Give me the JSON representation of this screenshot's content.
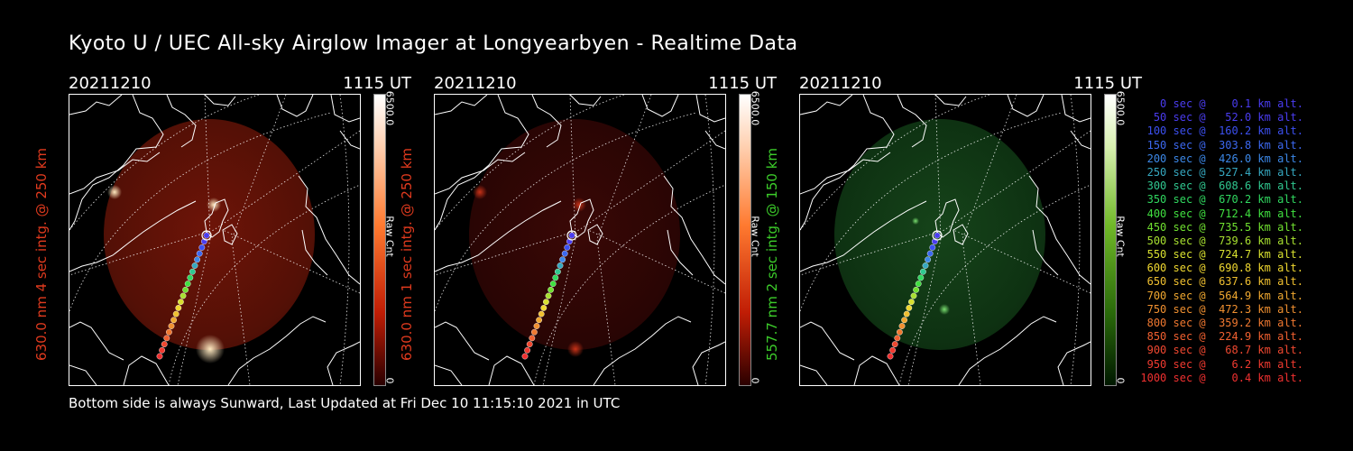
{
  "title": "Kyoto U / UEC All-sky Airglow Imager at Longyearbyen - Realtime Data",
  "footer": "Bottom side is always Sunward, Last Updated at Fri Dec 10 11:15:10 2021 in UTC",
  "panels": [
    {
      "date": "20211210",
      "time": "1115 UT",
      "side_label": "630.0 nm 4 sec intg. @ 250 km",
      "label_color": "#e03a1e",
      "cb_max": "6500.0",
      "cb_unit": "Raw Cnt",
      "cb_min": "0",
      "cb_gradient": "linear-gradient(to bottom, #ffffff 0%, #ffd0b0 18%, #ff7a30 45%, #c01d05 75%, #2a0000 100%)",
      "glow_center": "#6e1408",
      "glow_edge": "#541006",
      "hot": "#ffe9c0"
    },
    {
      "date": "20211210",
      "time": "1115 UT",
      "side_label": "630.0 nm 1 sec intg. @ 250 km",
      "label_color": "#e03a1e",
      "cb_max": "6500.0",
      "cb_unit": "Raw Cnt",
      "cb_min": "0",
      "cb_gradient": "linear-gradient(to bottom, #ffffff 0%, #ffd0b0 18%, #ff7a30 45%, #c01d05 75%, #2a0000 100%)",
      "glow_center": "#3a0806",
      "glow_edge": "#2a0504",
      "hot": "#c63218"
    },
    {
      "date": "20211210",
      "time": "1115 UT",
      "side_label": "557.7 nm 2 sec intg. @ 150 km",
      "label_color": "#3ccc2a",
      "cb_max": "6500.0",
      "cb_unit": "Raw Cnt",
      "cb_min": "0",
      "cb_gradient": "linear-gradient(to bottom, #ffffff 0%, #d8f0b0 18%, #70b828 45%, #2a6a0a 75%, #001800 100%)",
      "glow_center": "#16441a",
      "glow_edge": "#0e3212",
      "hot": "#7adf70"
    }
  ],
  "legend": [
    {
      "text": "   0 sec @    0.1 km alt.",
      "color": "#4a3cf0"
    },
    {
      "text": "  50 sec @   52.0 km alt.",
      "color": "#4a3cf0"
    },
    {
      "text": " 100 sec @  160.2 km alt.",
      "color": "#3c50f0"
    },
    {
      "text": " 150 sec @  303.8 km alt.",
      "color": "#3c68f0"
    },
    {
      "text": " 200 sec @  426.0 km alt.",
      "color": "#3c88e8"
    },
    {
      "text": " 250 sec @  527.4 km alt.",
      "color": "#36a8c0"
    },
    {
      "text": " 300 sec @  608.6 km alt.",
      "color": "#30c890"
    },
    {
      "text": " 350 sec @  670.2 km alt.",
      "color": "#30d860"
    },
    {
      "text": " 400 sec @  712.4 km alt.",
      "color": "#40e040"
    },
    {
      "text": " 450 sec @  735.5 km alt.",
      "color": "#70e030"
    },
    {
      "text": " 500 sec @  739.6 km alt.",
      "color": "#a8e030"
    },
    {
      "text": " 550 sec @  724.7 km alt.",
      "color": "#d8e030"
    },
    {
      "text": " 600 sec @  690.8 km alt.",
      "color": "#f0d830"
    },
    {
      "text": " 650 sec @  637.6 km alt.",
      "color": "#f0c030"
    },
    {
      "text": " 700 sec @  564.9 km alt.",
      "color": "#f0a830"
    },
    {
      "text": " 750 sec @  472.3 km alt.",
      "color": "#f09030"
    },
    {
      "text": " 800 sec @  359.2 km alt.",
      "color": "#f07830"
    },
    {
      "text": " 850 sec @  224.9 km alt.",
      "color": "#f06030"
    },
    {
      "text": " 900 sec @   68.7 km alt.",
      "color": "#f04830"
    },
    {
      "text": " 950 sec @    6.2 km alt.",
      "color": "#f03a30"
    },
    {
      "text": "1000 sec @    0.4 km alt.",
      "color": "#f03030"
    }
  ]
}
